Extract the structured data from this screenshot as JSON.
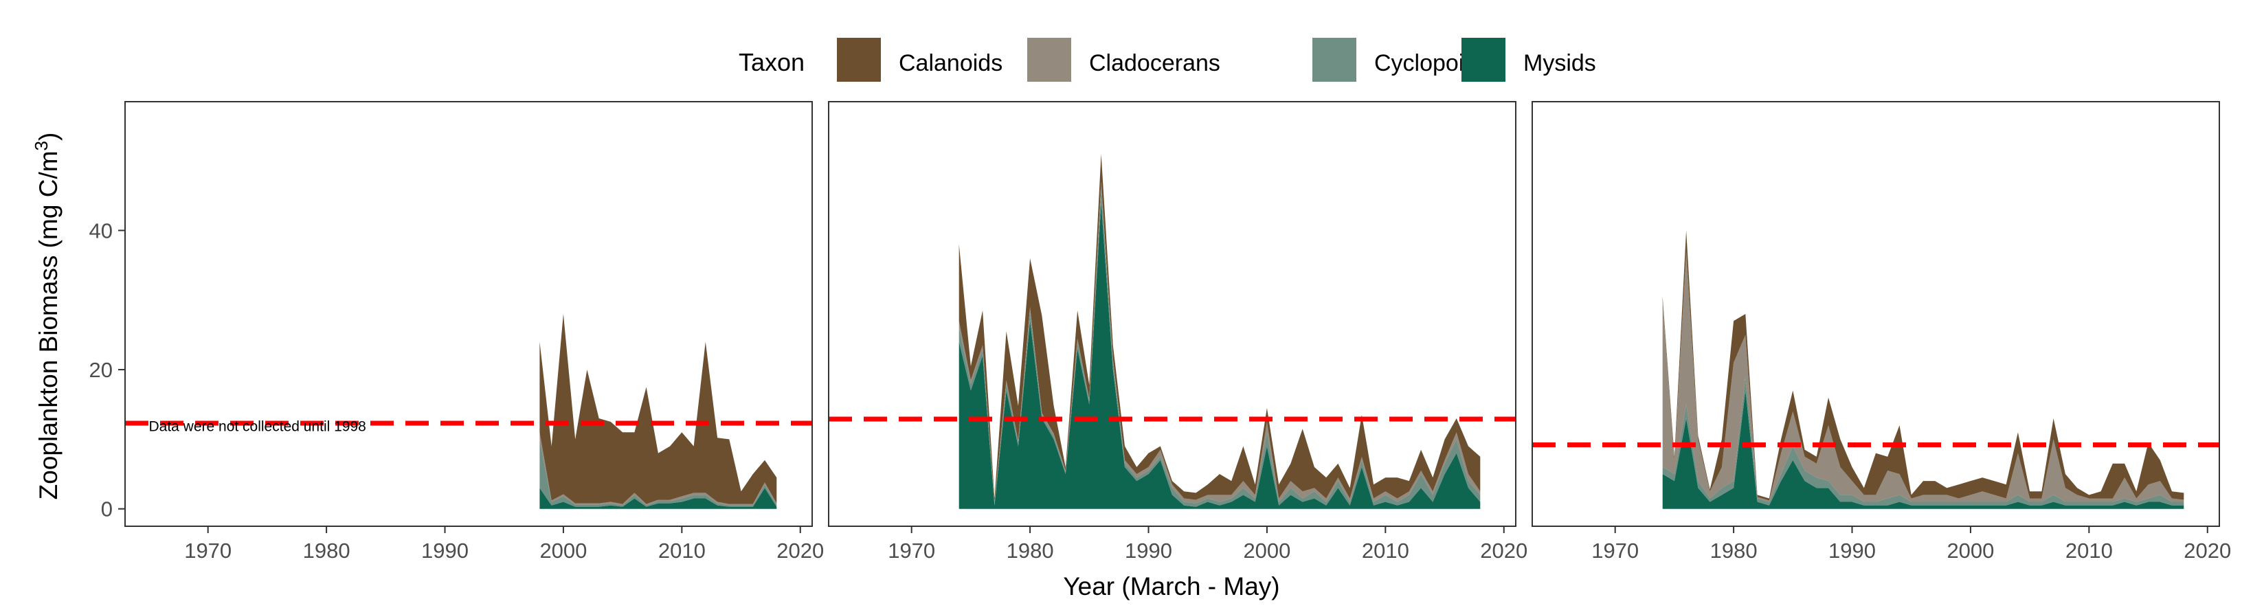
{
  "legend": {
    "title": "Taxon",
    "items": [
      {
        "name": "Calanoids",
        "color": "#6b4f2e"
      },
      {
        "name": "Cladocerans",
        "color": "#958a7e"
      },
      {
        "name": "Cyclopoids",
        "color": "#6f8f84"
      },
      {
        "name": "Mysids",
        "color": "#0e6650"
      }
    ]
  },
  "chart_data": {
    "type": "area",
    "stacked": true,
    "ylabel_main": "Zooplankton Biomass (mg C/m",
    "ylabel_sup": "3",
    "ylabel_end": ")",
    "xlabel": "Year (March - May)",
    "xlim": [
      1963,
      2021
    ],
    "ylim": [
      -2.5,
      58.5
    ],
    "xticks": [
      1970,
      1980,
      1990,
      2000,
      2010,
      2020
    ],
    "yticks": [
      0,
      20,
      40
    ],
    "grid": false,
    "legend_position": "top",
    "stack_order": [
      "Mysids",
      "Cyclopoids",
      "Cladocerans",
      "Calanoids"
    ],
    "panels": [
      {
        "annotation": "Data were not collected until 1998",
        "annotation_at": [
          1965,
          10
        ],
        "reference_line": 12.3,
        "x": [
          1998,
          1999,
          2000,
          2001,
          2002,
          2003,
          2004,
          2005,
          2006,
          2007,
          2008,
          2009,
          2010,
          2011,
          2012,
          2013,
          2014,
          2015,
          2016,
          2017,
          2018
        ],
        "series": [
          {
            "name": "Mysids",
            "values": [
              3,
              0.5,
              1,
              0.3,
              0.3,
              0.3,
              0.5,
              0.3,
              1.5,
              0.3,
              0.8,
              0.8,
              1,
              1.5,
              1.5,
              0.5,
              0.3,
              0.3,
              0.3,
              3,
              0.3
            ]
          },
          {
            "name": "Cyclopoids",
            "values": [
              7,
              0.5,
              0.8,
              0.3,
              0.3,
              0.3,
              0.3,
              0.2,
              0.5,
              0.2,
              0.3,
              0.3,
              0.5,
              0.5,
              0.5,
              0.3,
              0.2,
              0.2,
              0.2,
              0.5,
              0.3
            ]
          },
          {
            "name": "Cladocerans",
            "values": [
              1,
              0.2,
              0.3,
              0.2,
              0.2,
              0.2,
              0.2,
              0.2,
              0.3,
              0.2,
              0.2,
              0.2,
              0.3,
              0.3,
              0.3,
              0.2,
              0.2,
              0.2,
              0.2,
              0.3,
              0.2
            ]
          },
          {
            "name": "Calanoids",
            "values": [
              13,
              7.8,
              25.9,
              9.2,
              19.2,
              12.2,
              11.5,
              10.3,
              8.7,
              16.8,
              6.7,
              7.7,
              9.2,
              6.7,
              21.7,
              9.2,
              9.3,
              1.8,
              4.3,
              3.2,
              3.7
            ]
          }
        ]
      },
      {
        "reference_line": 12.9,
        "x": [
          1974,
          1975,
          1976,
          1977,
          1978,
          1979,
          1980,
          1981,
          1982,
          1983,
          1984,
          1985,
          1986,
          1987,
          1988,
          1989,
          1990,
          1991,
          1992,
          1993,
          1994,
          1995,
          1996,
          1997,
          1998,
          1999,
          2000,
          2001,
          2002,
          2003,
          2004,
          2005,
          2006,
          2007,
          2008,
          2009,
          2010,
          2011,
          2012,
          2013,
          2014,
          2015,
          2016,
          2017,
          2018
        ],
        "series": [
          {
            "name": "Mysids",
            "values": [
              24,
              17,
              22,
              0.5,
              17,
              9,
              27,
              13,
              10,
              5,
              23,
              15,
              44,
              20,
              6,
              4,
              5,
              7,
              2,
              0.5,
              0.3,
              1,
              0.5,
              1,
              2,
              1,
              9,
              0.5,
              2,
              1,
              1.5,
              0.5,
              3,
              0.5,
              6,
              0.5,
              1,
              0.5,
              1,
              3,
              1,
              5,
              8,
              3,
              1
            ]
          },
          {
            "name": "Cyclopoids",
            "values": [
              2,
              1,
              1,
              0.3,
              1,
              0.5,
              1.5,
              0.5,
              0.5,
              0.3,
              1,
              0.5,
              2,
              1,
              0.5,
              0.5,
              0.5,
              0.5,
              1,
              0.5,
              0.5,
              0.5,
              0.5,
              0.5,
              1,
              0.5,
              2,
              0.5,
              1,
              0.5,
              1,
              0.5,
              1,
              0.5,
              1,
              0.5,
              1,
              0.5,
              1,
              2,
              1,
              1.5,
              2,
              1,
              1
            ]
          },
          {
            "name": "Cladocerans",
            "values": [
              1,
              0.5,
              0.5,
              0.2,
              0.5,
              0.3,
              0.5,
              0.3,
              0.3,
              0.2,
              0.5,
              0.3,
              1,
              0.5,
              0.5,
              0.5,
              0.5,
              1,
              0.5,
              0.5,
              0.5,
              0.5,
              1,
              0.5,
              1,
              0.5,
              1.5,
              0.5,
              1,
              1,
              0.5,
              0.5,
              0.5,
              0.5,
              0.5,
              0.5,
              0.5,
              0.5,
              0.5,
              0.5,
              0.5,
              0.5,
              1,
              1,
              0.5
            ]
          },
          {
            "name": "Calanoids",
            "values": [
              11,
              2,
              5,
              0.5,
              7,
              5,
              7,
              14,
              4,
              0.5,
              4,
              2,
              4,
              2,
              2,
              1,
              2,
              0.5,
              0.5,
              1,
              1,
              1.5,
              3,
              2,
              5,
              1.5,
              2,
              2,
              2.5,
              9,
              3,
              3,
              2,
              1.5,
              6,
              2,
              2,
              3,
              1.5,
              3,
              2,
              3,
              2,
              4,
              5
            ]
          }
        ]
      },
      {
        "reference_line": 9.2,
        "x": [
          1974,
          1975,
          1976,
          1977,
          1978,
          1979,
          1980,
          1981,
          1982,
          1983,
          1984,
          1985,
          1986,
          1987,
          1988,
          1989,
          1990,
          1991,
          1992,
          1993,
          1994,
          1995,
          1996,
          1997,
          1998,
          1999,
          2000,
          2001,
          2002,
          2003,
          2004,
          2005,
          2006,
          2007,
          2008,
          2009,
          2010,
          2011,
          2012,
          2013,
          2014,
          2015,
          2016,
          2017,
          2018
        ],
        "series": [
          {
            "name": "Mysids",
            "values": [
              5,
              4,
              13,
              3,
              1,
              2,
              3,
              17,
              1,
              0.5,
              4,
              7,
              4,
              3,
              3,
              1,
              1,
              0.5,
              0.5,
              0.5,
              1,
              0.5,
              0.5,
              0.5,
              0.5,
              0.5,
              0.5,
              0.5,
              0.5,
              0.5,
              1,
              0.5,
              0.5,
              1,
              0.5,
              0.5,
              0.5,
              0.5,
              0.5,
              1,
              0.5,
              1,
              1,
              0.5,
              0.5
            ]
          },
          {
            "name": "Cyclopoids",
            "values": [
              1,
              1,
              2,
              1,
              0.5,
              1,
              1,
              2,
              0.5,
              0.5,
              1,
              2,
              1.5,
              1.5,
              1,
              1,
              1,
              0.5,
              0.5,
              1,
              1,
              0.5,
              0.5,
              0.5,
              0.5,
              0.5,
              0.5,
              0.5,
              0.5,
              0.5,
              1,
              0.5,
              0.5,
              1,
              0.5,
              0.5,
              0.5,
              0.5,
              0.5,
              0.5,
              0.5,
              0.5,
              1,
              0.5,
              0.5
            ]
          },
          {
            "name": "Cladocerans",
            "values": [
              24,
              2,
              22,
              6,
              1,
              3,
              17,
              6,
              0.2,
              0.2,
              3,
              5,
              2,
              2,
              8,
              4,
              2,
              1,
              1,
              4,
              3,
              0.5,
              1,
              1,
              1,
              0.5,
              1,
              1.5,
              1,
              0.5,
              6,
              0.5,
              0.5,
              8,
              2,
              1,
              0.5,
              0.5,
              0.5,
              3,
              0.5,
              2,
              2,
              0.5,
              0.3
            ]
          },
          {
            "name": "Calanoids",
            "values": [
              0.5,
              0.5,
              3,
              0.5,
              0.3,
              4,
              6,
              3,
              0.3,
              0.3,
              2,
              3,
              1,
              1,
              4,
              4,
              2,
              1,
              6,
              2,
              7,
              0.5,
              2,
              2,
              1,
              2,
              2,
              2,
              2,
              2,
              3,
              1,
              1,
              3,
              2,
              1,
              0.5,
              1,
              5,
              2,
              1,
              6,
              3,
              1,
              1
            ]
          }
        ]
      }
    ]
  }
}
